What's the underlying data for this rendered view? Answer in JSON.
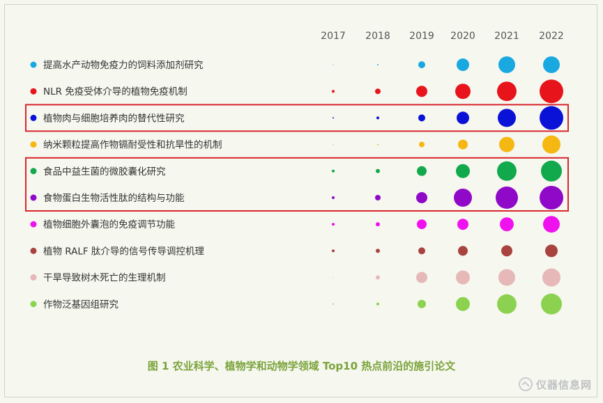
{
  "caption": "图 1  农业科学、植物学和动物学领域 Top10 热点前沿的施引论文",
  "watermark": "仪器信息网",
  "chart_data": {
    "type": "bubble",
    "title": "图 1  农业科学、植物学和动物学领域 Top10 热点前沿的施引论文",
    "x": [
      "2017",
      "2018",
      "2019",
      "2020",
      "2021",
      "2022"
    ],
    "highlighted_groups": [
      [
        2
      ],
      [
        4,
        5
      ]
    ],
    "series": [
      {
        "name": "提高水产动物免疫力的饲料添加剂研究",
        "color": "#1aa8e0",
        "values": [
          0,
          1,
          5,
          9,
          12,
          12
        ]
      },
      {
        "name": "NLR 免疫受体介导的植物免疫机制",
        "color": "#e8141c",
        "values": [
          2,
          4,
          8,
          11,
          14,
          17
        ]
      },
      {
        "name": "植物肉与细胞培养肉的替代性研究",
        "color": "#0a12d8",
        "values": [
          1,
          2,
          5,
          9,
          13,
          17
        ]
      },
      {
        "name": "纳米颗粒提高作物镉耐受性和抗旱性的机制",
        "color": "#f5b711",
        "values": [
          0,
          1,
          4,
          7,
          11,
          13
        ]
      },
      {
        "name": "食品中益生菌的微胶囊化研究",
        "color": "#12a84c",
        "values": [
          2,
          3,
          7,
          10,
          14,
          15
        ]
      },
      {
        "name": "食物蛋白生物活性肽的结构与功能",
        "color": "#9008c8",
        "values": [
          2,
          4,
          8,
          13,
          16,
          17
        ]
      },
      {
        "name": "植物细胞外囊泡的免疫调节功能",
        "color": "#f012ee",
        "values": [
          2,
          3,
          7,
          8,
          10,
          12
        ]
      },
      {
        "name": "植物 RALF 肽介导的信号传导调控机理",
        "color": "#a8433f",
        "values": [
          2,
          3,
          5,
          7,
          8,
          9
        ]
      },
      {
        "name": "干旱导致树木死亡的生理机制",
        "color": "#e6b8b7",
        "values": [
          0,
          3,
          8,
          10,
          12,
          13
        ]
      },
      {
        "name": "作物泛基因组研究",
        "color": "#8cd250",
        "values": [
          1,
          2,
          6,
          10,
          14,
          15
        ]
      }
    ]
  }
}
